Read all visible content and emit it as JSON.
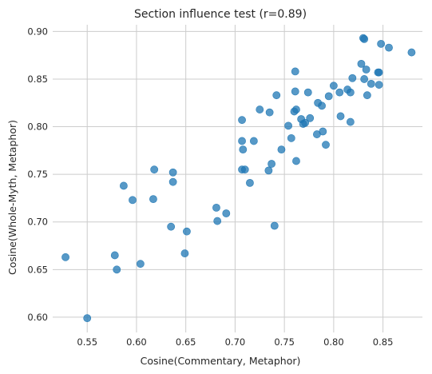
{
  "chart_data": {
    "type": "scatter",
    "title": "Section influence test (r=0.89)",
    "xlabel": "Cosine(Commentary, Metaphor)",
    "ylabel": "Cosine(Whole-Myth, Metaphor)",
    "xlim": [
      0.515,
      0.89
    ],
    "ylim": [
      0.584,
      0.907
    ],
    "xticks": [
      0.55,
      0.6,
      0.65,
      0.7,
      0.75,
      0.8,
      0.85
    ],
    "xtick_labels": [
      "0.55",
      "0.60",
      "0.65",
      "0.70",
      "0.75",
      "0.80",
      "0.85"
    ],
    "yticks": [
      0.6,
      0.65,
      0.7,
      0.75,
      0.8,
      0.85,
      0.9
    ],
    "ytick_labels": [
      "0.60",
      "0.65",
      "0.70",
      "0.75",
      "0.80",
      "0.85",
      "0.90"
    ],
    "grid": true,
    "point_color": "#1f77b4",
    "points": [
      {
        "x": 0.528,
        "y": 0.663
      },
      {
        "x": 0.55,
        "y": 0.599
      },
      {
        "x": 0.578,
        "y": 0.665
      },
      {
        "x": 0.58,
        "y": 0.65
      },
      {
        "x": 0.587,
        "y": 0.738
      },
      {
        "x": 0.596,
        "y": 0.723
      },
      {
        "x": 0.604,
        "y": 0.656
      },
      {
        "x": 0.617,
        "y": 0.724
      },
      {
        "x": 0.618,
        "y": 0.755
      },
      {
        "x": 0.635,
        "y": 0.695
      },
      {
        "x": 0.637,
        "y": 0.752
      },
      {
        "x": 0.637,
        "y": 0.742
      },
      {
        "x": 0.649,
        "y": 0.667
      },
      {
        "x": 0.651,
        "y": 0.69
      },
      {
        "x": 0.681,
        "y": 0.715
      },
      {
        "x": 0.682,
        "y": 0.701
      },
      {
        "x": 0.691,
        "y": 0.709
      },
      {
        "x": 0.707,
        "y": 0.807
      },
      {
        "x": 0.707,
        "y": 0.785
      },
      {
        "x": 0.707,
        "y": 0.755
      },
      {
        "x": 0.708,
        "y": 0.776
      },
      {
        "x": 0.71,
        "y": 0.755
      },
      {
        "x": 0.715,
        "y": 0.741
      },
      {
        "x": 0.719,
        "y": 0.785
      },
      {
        "x": 0.725,
        "y": 0.818
      },
      {
        "x": 0.734,
        "y": 0.754
      },
      {
        "x": 0.735,
        "y": 0.815
      },
      {
        "x": 0.737,
        "y": 0.761
      },
      {
        "x": 0.74,
        "y": 0.696
      },
      {
        "x": 0.742,
        "y": 0.833
      },
      {
        "x": 0.747,
        "y": 0.776
      },
      {
        "x": 0.754,
        "y": 0.801
      },
      {
        "x": 0.757,
        "y": 0.788
      },
      {
        "x": 0.76,
        "y": 0.816
      },
      {
        "x": 0.761,
        "y": 0.858
      },
      {
        "x": 0.761,
        "y": 0.837
      },
      {
        "x": 0.762,
        "y": 0.764
      },
      {
        "x": 0.762,
        "y": 0.818
      },
      {
        "x": 0.767,
        "y": 0.808
      },
      {
        "x": 0.769,
        "y": 0.803
      },
      {
        "x": 0.771,
        "y": 0.804
      },
      {
        "x": 0.774,
        "y": 0.836
      },
      {
        "x": 0.776,
        "y": 0.809
      },
      {
        "x": 0.783,
        "y": 0.792
      },
      {
        "x": 0.784,
        "y": 0.825
      },
      {
        "x": 0.788,
        "y": 0.822
      },
      {
        "x": 0.789,
        "y": 0.795
      },
      {
        "x": 0.792,
        "y": 0.781
      },
      {
        "x": 0.795,
        "y": 0.832
      },
      {
        "x": 0.8,
        "y": 0.843
      },
      {
        "x": 0.806,
        "y": 0.836
      },
      {
        "x": 0.807,
        "y": 0.811
      },
      {
        "x": 0.814,
        "y": 0.839
      },
      {
        "x": 0.817,
        "y": 0.805
      },
      {
        "x": 0.817,
        "y": 0.836
      },
      {
        "x": 0.819,
        "y": 0.851
      },
      {
        "x": 0.828,
        "y": 0.866
      },
      {
        "x": 0.83,
        "y": 0.893
      },
      {
        "x": 0.831,
        "y": 0.892
      },
      {
        "x": 0.831,
        "y": 0.85
      },
      {
        "x": 0.833,
        "y": 0.86
      },
      {
        "x": 0.834,
        "y": 0.833
      },
      {
        "x": 0.838,
        "y": 0.845
      },
      {
        "x": 0.845,
        "y": 0.857
      },
      {
        "x": 0.846,
        "y": 0.857
      },
      {
        "x": 0.846,
        "y": 0.844
      },
      {
        "x": 0.848,
        "y": 0.887
      },
      {
        "x": 0.856,
        "y": 0.883
      },
      {
        "x": 0.879,
        "y": 0.878
      }
    ]
  }
}
